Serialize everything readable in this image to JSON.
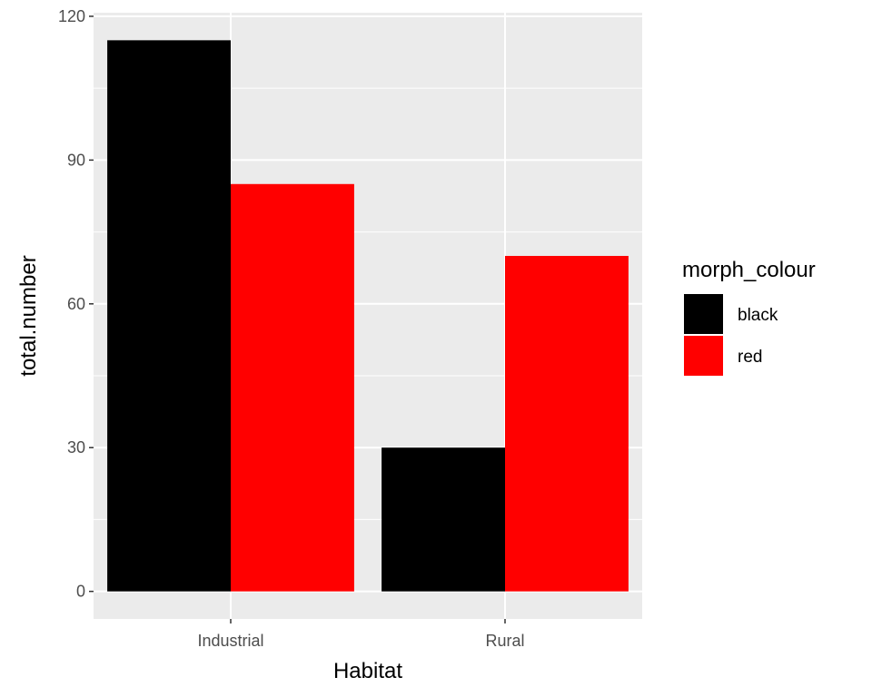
{
  "chart_data": {
    "type": "bar",
    "categories": [
      "Industrial",
      "Rural"
    ],
    "series": [
      {
        "name": "black",
        "values": [
          115,
          30
        ],
        "color": "#000000"
      },
      {
        "name": "red",
        "values": [
          85,
          70
        ],
        "color": "#ff0000"
      }
    ],
    "xlabel": "Habitat",
    "ylabel": "total.number",
    "ylim": [
      -5.75,
      120.75
    ],
    "yticks": [
      0,
      30,
      60,
      90,
      120
    ],
    "legend_title": "morph_colour",
    "legend_position": "right",
    "grid": true,
    "panel_background": "#ebebeb",
    "grid_color": "#ffffff"
  }
}
